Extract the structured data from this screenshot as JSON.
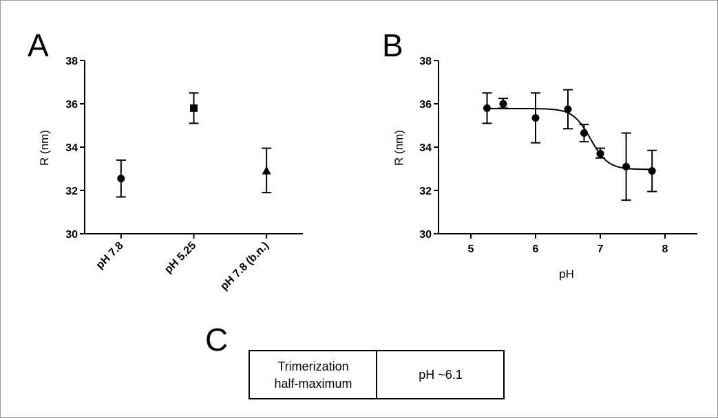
{
  "panels": {
    "a": {
      "letter": "A"
    },
    "b": {
      "letter": "B"
    },
    "c": {
      "letter": "C"
    }
  },
  "table": {
    "label_line1": "Trimerization",
    "label_line2": "half-maximum",
    "value": "pH ~6.1"
  },
  "chart_data": [
    {
      "type": "scatter",
      "panel": "A",
      "title": "",
      "xlabel": "",
      "ylabel": "R (nm)",
      "ylim": [
        30,
        38
      ],
      "yticks": [
        "30",
        "32",
        "34",
        "36",
        "38"
      ],
      "categories": [
        "pH 7.8",
        "pH 5.25",
        "pH 7.8 (b.n.)"
      ],
      "values": [
        32.55,
        35.8,
        32.9
      ],
      "error_low": [
        31.7,
        35.1,
        31.9
      ],
      "error_high": [
        33.4,
        36.5,
        33.95
      ],
      "markers": [
        "circle",
        "square",
        "triangle"
      ]
    },
    {
      "type": "scatter",
      "panel": "B",
      "title": "",
      "xlabel": "pH",
      "ylabel": "R (nm)",
      "xlim": [
        4.5,
        8.5
      ],
      "ylim": [
        30,
        38
      ],
      "xticks": [
        "5",
        "6",
        "7",
        "8"
      ],
      "yticks": [
        "30",
        "32",
        "34",
        "36",
        "38"
      ],
      "points": [
        {
          "x": 5.25,
          "y": 35.8,
          "lo": 35.1,
          "hi": 36.5
        },
        {
          "x": 5.5,
          "y": 36.0,
          "lo": 35.8,
          "hi": 36.25
        },
        {
          "x": 6.0,
          "y": 35.35,
          "lo": 34.2,
          "hi": 36.5
        },
        {
          "x": 6.5,
          "y": 35.75,
          "lo": 34.85,
          "hi": 36.65
        },
        {
          "x": 6.75,
          "y": 34.65,
          "lo": 34.25,
          "hi": 35.05
        },
        {
          "x": 7.0,
          "y": 33.7,
          "lo": 33.5,
          "hi": 33.95
        },
        {
          "x": 7.4,
          "y": 33.1,
          "lo": 31.55,
          "hi": 34.65
        },
        {
          "x": 7.8,
          "y": 32.9,
          "lo": 31.95,
          "hi": 33.85
        }
      ],
      "fit": {
        "top": 35.78,
        "bottom": 32.97,
        "mid": 6.85,
        "hill": 3.2,
        "from": 5.25,
        "to": 7.8
      }
    }
  ]
}
